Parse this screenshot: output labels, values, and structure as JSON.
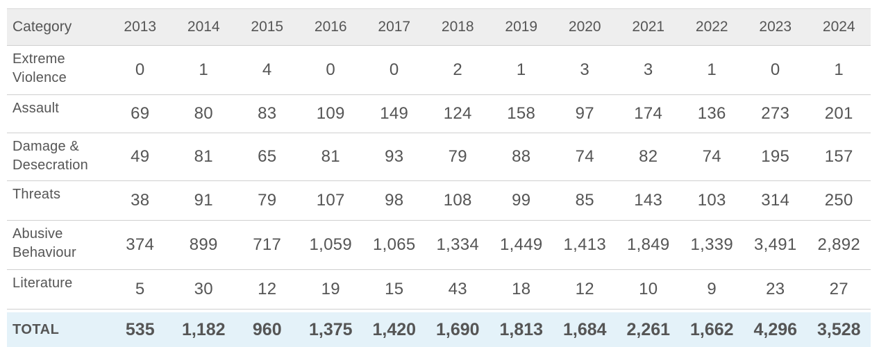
{
  "chart_data": {
    "type": "table",
    "columns": [
      "Category",
      "2013",
      "2014",
      "2015",
      "2016",
      "2017",
      "2018",
      "2019",
      "2020",
      "2021",
      "2022",
      "2023",
      "2024"
    ],
    "rows": [
      {
        "category": "Extreme Violence",
        "values": [
          "0",
          "1",
          "4",
          "0",
          "0",
          "2",
          "1",
          "3",
          "3",
          "1",
          "0",
          "1"
        ]
      },
      {
        "category": "Assault",
        "values": [
          "69",
          "80",
          "83",
          "109",
          "149",
          "124",
          "158",
          "97",
          "174",
          "136",
          "273",
          "201"
        ]
      },
      {
        "category": "Damage & Desecration",
        "values": [
          "49",
          "81",
          "65",
          "81",
          "93",
          "79",
          "88",
          "74",
          "82",
          "74",
          "195",
          "157"
        ]
      },
      {
        "category": "Threats",
        "values": [
          "38",
          "91",
          "79",
          "107",
          "98",
          "108",
          "99",
          "85",
          "143",
          "103",
          "314",
          "250"
        ]
      },
      {
        "category": "Abusive Behaviour",
        "values": [
          "374",
          "899",
          "717",
          "1,059",
          "1,065",
          "1,334",
          "1,449",
          "1,413",
          "1,849",
          "1,339",
          "3,491",
          "2,892"
        ]
      },
      {
        "category": "Literature",
        "values": [
          "5",
          "30",
          "12",
          "19",
          "15",
          "43",
          "18",
          "12",
          "10",
          "9",
          "23",
          "27"
        ]
      }
    ],
    "total": {
      "label": "TOTAL",
      "values": [
        "535",
        "1,182",
        "960",
        "1,375",
        "1,420",
        "1,690",
        "1,813",
        "1,684",
        "2,261",
        "1,662",
        "4,296",
        "3,528"
      ]
    },
    "header_bg": "#eeeeee",
    "total_bg": "#e4f2f9",
    "text_color": "#555555"
  }
}
